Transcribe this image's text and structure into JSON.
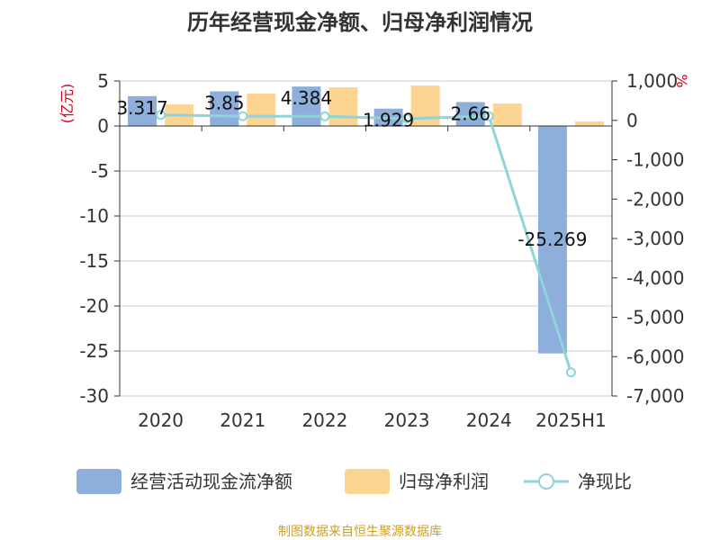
{
  "chart_data": {
    "type": "bar",
    "title": "历年经营现金净额、归母净利润情况",
    "categories": [
      "2020",
      "2021",
      "2022",
      "2023",
      "2024",
      "2025H1"
    ],
    "left_axis": {
      "unit_label": "(亿元)",
      "ylim": [
        -30,
        5
      ],
      "ticks": [
        5,
        0,
        -5,
        -10,
        -15,
        -20,
        -25,
        -30
      ],
      "tick_labels": [
        "5",
        "0",
        "-5",
        "-10",
        "-15",
        "-20",
        "-25",
        "-30"
      ]
    },
    "right_axis": {
      "unit_label": "%",
      "ylim": [
        -7000,
        1000
      ],
      "ticks": [
        1000,
        0,
        -1000,
        -2000,
        -3000,
        -4000,
        -5000,
        -6000,
        -7000
      ],
      "tick_labels": [
        "1,000",
        "0",
        "-1,000",
        "-2,000",
        "-3,000",
        "-4,000",
        "-5,000",
        "-6,000",
        "-7,000"
      ]
    },
    "series": [
      {
        "name": "经营活动现金流净额",
        "type": "bar",
        "axis": "left",
        "color": "#8eaedb",
        "values": [
          3.317,
          3.85,
          4.384,
          1.929,
          2.66,
          -25.269
        ],
        "labels": [
          "3.317",
          "3.85",
          "4.384",
          "1.929",
          "2.66",
          "-25.269"
        ]
      },
      {
        "name": "归母净利润",
        "type": "bar",
        "axis": "left",
        "color": "#fdd593",
        "values": [
          2.4,
          3.6,
          4.3,
          4.5,
          2.5,
          0.5
        ]
      },
      {
        "name": "净现比",
        "type": "line",
        "axis": "right",
        "color": "#8fd4d8",
        "values": [
          138,
          107,
          102,
          43,
          106,
          -6400
        ]
      }
    ],
    "legend_position": "bottom",
    "grid": true
  },
  "source": "制图数据来自恒生聚源数据库"
}
